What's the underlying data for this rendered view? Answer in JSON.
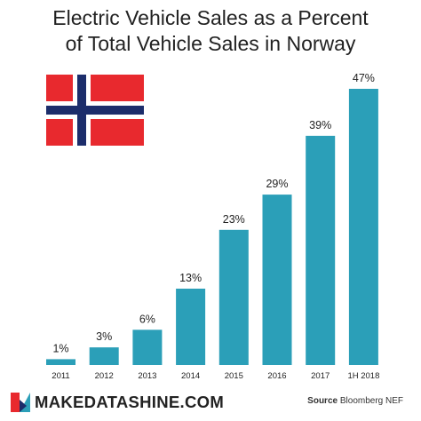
{
  "title_line1": "Electric Vehicle Sales as a Percent",
  "title_line2": "of Total Vehicle Sales in Norway",
  "footer": {
    "brand": "MAKEDATASHINE.COM",
    "source_label": "Source",
    "source_value": "Bloomberg NEF"
  },
  "colors": {
    "bar": "#2b9fb8",
    "flag_red": "#e8292e",
    "flag_white": "#ffffff",
    "flag_blue": "#1c2d6b",
    "logo_red": "#e8292e",
    "logo_teal": "#2b9fb8",
    "logo_dark": "#1c2d6b"
  },
  "icons": {
    "flag": "norway-flag-icon",
    "logo": "makedatashine-logo-icon"
  },
  "chart_data": {
    "type": "bar",
    "title": "Electric Vehicle Sales as a Percent of Total Vehicle Sales in Norway",
    "categories": [
      "2011",
      "2012",
      "2013",
      "2014",
      "2015",
      "2016",
      "2017",
      "1H 2018"
    ],
    "values": [
      1,
      3,
      6,
      13,
      23,
      29,
      39,
      47
    ],
    "labels": [
      "1%",
      "3%",
      "6%",
      "13%",
      "23%",
      "29%",
      "39%",
      "47%"
    ],
    "unit": "%",
    "ylim": [
      0,
      47
    ],
    "xlabel": "",
    "ylabel": "",
    "grid": false,
    "legend": "none"
  }
}
